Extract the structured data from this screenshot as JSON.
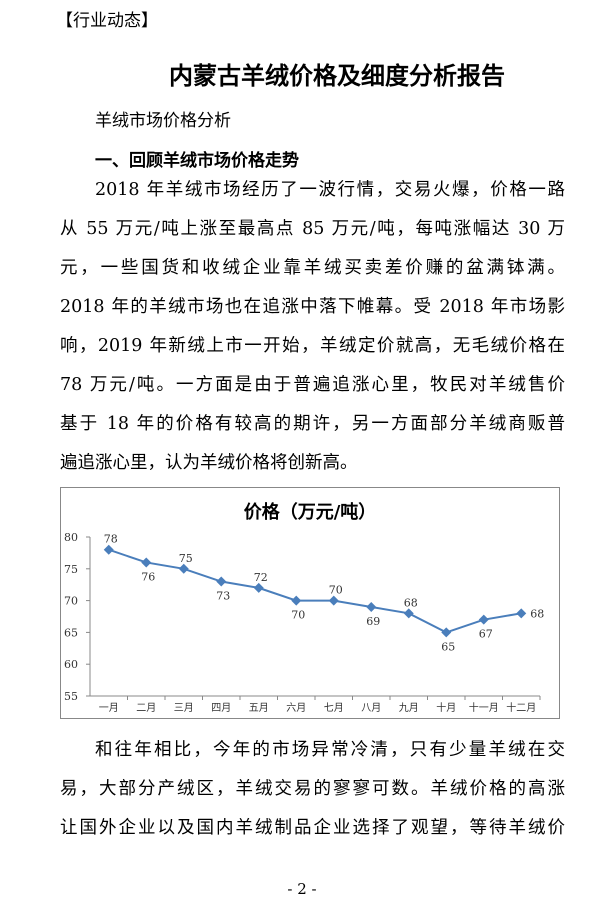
{
  "header": {
    "tag": "【行业动态】"
  },
  "title": "内蒙古羊绒价格及细度分析报告",
  "subtitle": "羊绒市场价格分析",
  "section": "一、回顾羊绒市场价格走势",
  "paragraphs_before": [
    [
      "2018 年羊绒市场经历了一波行情，交易火爆，价格一路",
      "从 55 万元/吨上涨至最高点 85 万元/吨，每吨涨幅达 30 万",
      "元，一些国货和收绒企业靠羊绒买卖差价赚的盆满钵满。",
      "2018 年的羊绒市场也在追涨中落下帷幕。受 2018 年市场影",
      "响，2019 年新绒上市一开始，羊绒定价就高，无毛绒价格在",
      "78 万元/吨。一方面是由于普遍追涨心里，牧民对羊绒售价",
      "基于 18 年的价格有较高的期许，另一方面部分羊绒商贩普",
      "遍追涨心里，认为羊绒价格将创新高。"
    ]
  ],
  "chart_data": {
    "type": "line",
    "title": "价格（万元/吨）",
    "categories": [
      "一月",
      "二月",
      "三月",
      "四月",
      "五月",
      "六月",
      "七月",
      "八月",
      "九月",
      "十月",
      "十一月",
      "十二月"
    ],
    "values": [
      78,
      76,
      75,
      73,
      72,
      70,
      70,
      69,
      68,
      65,
      67,
      68
    ],
    "color": "#4a7ebb",
    "ylim": [
      55,
      80
    ],
    "yticks": [
      55,
      60,
      65,
      70,
      75,
      80
    ],
    "grid": false
  },
  "paragraphs_after": [
    [
      "和往年相比，今年的市场异常冷清，只有少量羊绒在交",
      "易，大部分产绒区，羊绒交易的寥寥可数。羊绒价格的高涨",
      "让国外企业以及国内羊绒制品企业选择了观望，等待羊绒价"
    ]
  ],
  "page_number": "- 2 -"
}
